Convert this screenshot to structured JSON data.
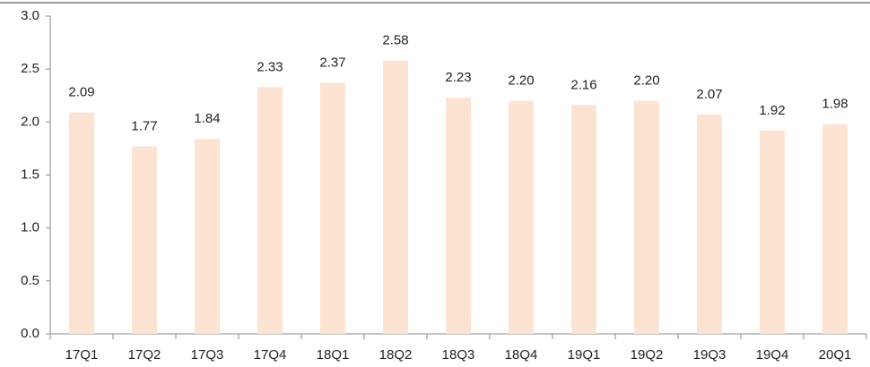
{
  "chart_data": {
    "type": "bar",
    "categories": [
      "17Q1",
      "17Q2",
      "17Q3",
      "17Q4",
      "18Q1",
      "18Q2",
      "18Q3",
      "18Q4",
      "19Q1",
      "19Q2",
      "19Q3",
      "19Q4",
      "20Q1"
    ],
    "values": [
      2.09,
      1.77,
      1.84,
      2.33,
      2.37,
      2.58,
      2.23,
      2.2,
      2.16,
      2.2,
      2.07,
      1.92,
      1.98
    ],
    "value_labels": [
      "2.09",
      "1.77",
      "1.84",
      "2.33",
      "2.37",
      "2.58",
      "2.23",
      "2.20",
      "2.16",
      "2.20",
      "2.07",
      "1.92",
      "1.98"
    ],
    "color": "#fde3d1",
    "ylim": [
      0,
      3
    ],
    "yticks": [
      {
        "value": 0,
        "label": "0.0"
      },
      {
        "value": 0.5,
        "label": "0.5"
      },
      {
        "value": 1,
        "label": "1.0"
      },
      {
        "value": 1.5,
        "label": "1.5"
      },
      {
        "value": 2,
        "label": "2.0"
      },
      {
        "value": 2.5,
        "label": "2.5"
      },
      {
        "value": 3,
        "label": "3.0"
      }
    ],
    "grid": false
  }
}
